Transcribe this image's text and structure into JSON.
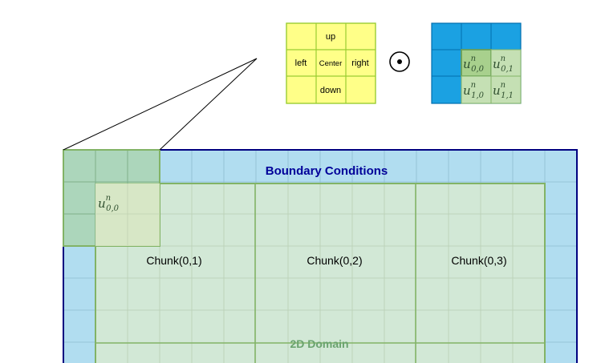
{
  "stencil": {
    "up": "up",
    "left": "left",
    "center": "Center",
    "right": "right",
    "down": "down",
    "operator": "⊙"
  },
  "local_block": {
    "cells": [
      {
        "base": "u",
        "sup": "n",
        "sub": "0,0"
      },
      {
        "base": "u",
        "sup": "n",
        "sub": "0,1"
      },
      {
        "base": "u",
        "sup": "n",
        "sub": "1,0"
      },
      {
        "base": "u",
        "sup": "n",
        "sub": "1,1"
      }
    ]
  },
  "domain": {
    "boundary_label": "Boundary Conditions",
    "domain_label": "2D Domain",
    "corner_cell": {
      "base": "u",
      "sup": "n",
      "sub": "0,0"
    },
    "chunks": [
      "Chunk(0,1)",
      "Chunk(0,2)",
      "Chunk(0,3)"
    ]
  },
  "colors": {
    "stencil_fill": "#ffff88",
    "stencil_border": "#9acd32",
    "block_blue": "#1ba1e2",
    "block_blue_border": "#006eaf",
    "cell_green": "#a8d08d",
    "boundary_fill": "#b1ddf0",
    "domain_border": "#000080",
    "interior_fill": "#d5e8d4",
    "interior_border": "#82b366",
    "boundary_text": "#000099",
    "domain_text": "#6aa36f"
  }
}
